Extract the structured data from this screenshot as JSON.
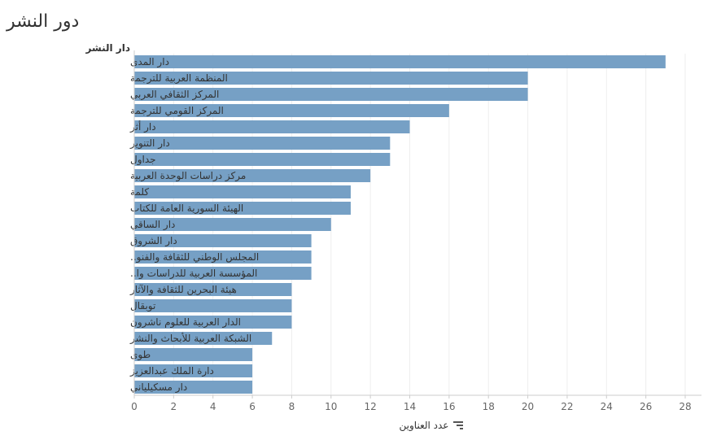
{
  "title": "دور النشر",
  "colors": {
    "bar": "#76a0c5",
    "grid": "#eeeeee",
    "axis": "#cccccc"
  },
  "sort_icon": "sort-descending-icon",
  "chart_data": {
    "type": "bar",
    "orientation": "horizontal",
    "row_header": "دار النشر",
    "xlabel": "عدد العناوين",
    "xlim": [
      0,
      28
    ],
    "xticks": [
      0,
      2,
      4,
      6,
      8,
      10,
      12,
      14,
      16,
      18,
      20,
      22,
      24,
      26,
      28
    ],
    "grid": true,
    "categories": [
      "دار المدى",
      "المنظمة العربية للترجمة",
      "المركز الثقافي العربي",
      "المركز القومي للترجمة",
      "دار أثر",
      "دار التنوير",
      "جداول",
      "مركز دراسات الوحدة العربية",
      "كلمة",
      "الهيئة السورية العامة للكتاب",
      "دار الساقي",
      "دار الشروق",
      "المجلس الوطني للثقافة والفنو..",
      "المؤسسة العربية للدراسات وا..",
      "هيئة البحرين للثقافة والآثار",
      "توبقال",
      "الدار العربية للعلوم ناشرون",
      "الشبكة العربية للأبحاث والنشر",
      "طوى",
      "دارة الملك عبدالعزيز",
      "دار مسكيلياني"
    ],
    "values": [
      27,
      20,
      20,
      16,
      14,
      13,
      13,
      12,
      11,
      11,
      10,
      9,
      9,
      9,
      8,
      8,
      8,
      7,
      6,
      6,
      6
    ]
  }
}
